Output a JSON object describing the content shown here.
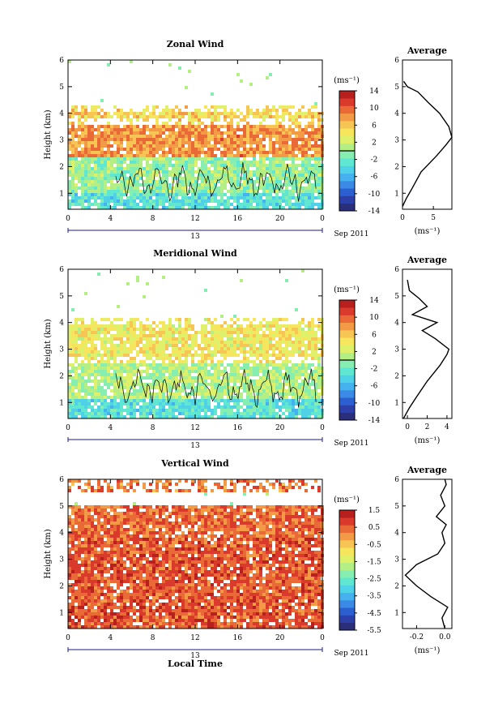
{
  "panels": [
    {
      "title": "Zonal Wind",
      "colorbar_unit": "(ms⁻¹)",
      "colorbar_ticks": [
        "14",
        "10",
        "6",
        "2",
        "-2",
        "-6",
        "-10",
        "-14"
      ],
      "avg_title": "Average",
      "avg_xticks": [
        "0",
        "5"
      ],
      "avg_xlabel": "(ms⁻¹)"
    },
    {
      "title": "Meridional Wind",
      "colorbar_unit": "(ms⁻¹)",
      "colorbar_ticks": [
        "14",
        "10",
        "6",
        "2",
        "-2",
        "-6",
        "-10",
        "-14"
      ],
      "avg_title": "Average",
      "avg_xticks": [
        "0",
        "2",
        "4"
      ],
      "avg_xlabel": "(ms⁻¹)"
    },
    {
      "title": "Vertical Wind",
      "colorbar_unit": "(ms⁻¹)",
      "colorbar_ticks": [
        "1.5",
        "0.5",
        "-0.5",
        "-1.5",
        "-2.5",
        "-3.5",
        "-4.5",
        "-5.5"
      ],
      "avg_title": "Average",
      "avg_xticks": [
        "-0.2",
        "0.0"
      ],
      "avg_xlabel": "(ms⁻¹)"
    }
  ],
  "axes": {
    "ylabel": "Height (km)",
    "yticks": [
      "1",
      "2",
      "3",
      "4",
      "5",
      "6"
    ],
    "xticks": [
      "0",
      "4",
      "8",
      "12",
      "16",
      "20",
      "0"
    ],
    "date_day": "13",
    "date_month": "Sep 2011",
    "xlabel_bottom": "Local Time"
  },
  "colors": {
    "colormap": [
      "#2b2f7a",
      "#2d3fa8",
      "#2c5fd0",
      "#3a8ae6",
      "#45b1ee",
      "#4fd2e8",
      "#5fe7d2",
      "#86eeb0",
      "#b4ef86",
      "#dff06b",
      "#f6e65e",
      "#f7c553",
      "#f29a45",
      "#ea6a37",
      "#d93a2c",
      "#b8201e"
    ]
  },
  "chart_data": [
    {
      "type": "heatmap",
      "title": "Zonal Wind",
      "ylabel": "Height (km)",
      "ylim": [
        0.4,
        6
      ],
      "xlim": [
        0,
        24
      ],
      "xticks": [
        0,
        4,
        8,
        12,
        16,
        20,
        24
      ],
      "colorbar_range": [
        -14,
        14
      ],
      "colorbar_ticks": [
        14,
        10,
        6,
        2,
        -2,
        -6,
        -10,
        -14
      ],
      "zero_contour": true,
      "layers": [
        {
          "from_km": 0.4,
          "to_km": 1.0,
          "value": -3
        },
        {
          "from_km": 1.0,
          "to_km": 2.4,
          "value": 0
        },
        {
          "from_km": 2.4,
          "to_km": 3.6,
          "value": 8
        },
        {
          "from_km": 3.6,
          "to_km": 4.3,
          "value": 5
        }
      ],
      "average_profile": {
        "height_km": [
          0.5,
          0.8,
          1.2,
          1.8,
          2.4,
          2.8,
          3.1,
          3.5,
          4.0,
          4.4,
          4.8,
          5.0,
          5.2
        ],
        "value_ms": [
          0.0,
          0.6,
          1.6,
          3.0,
          5.5,
          7.0,
          8.0,
          7.5,
          6.0,
          4.2,
          2.5,
          0.8,
          0.2
        ],
        "xlim": [
          0,
          8
        ],
        "xticks": [
          0,
          5
        ]
      }
    },
    {
      "type": "heatmap",
      "title": "Meridional Wind",
      "ylabel": "Height (km)",
      "ylim": [
        0.4,
        6
      ],
      "xlim": [
        0,
        24
      ],
      "xticks": [
        0,
        4,
        8,
        12,
        16,
        20,
        24
      ],
      "colorbar_range": [
        -14,
        14
      ],
      "colorbar_ticks": [
        14,
        10,
        6,
        2,
        -2,
        -6,
        -10,
        -14
      ],
      "zero_contour": true,
      "layers": [
        {
          "from_km": 0.4,
          "to_km": 1.1,
          "value": -3
        },
        {
          "from_km": 1.1,
          "to_km": 2.5,
          "value": 1
        },
        {
          "from_km": 2.5,
          "to_km": 4.2,
          "value": 4
        }
      ],
      "average_profile": {
        "height_km": [
          0.4,
          0.8,
          1.2,
          1.8,
          2.4,
          2.8,
          3.0,
          3.4,
          3.7,
          4.0,
          4.3,
          4.6,
          4.9,
          5.2,
          5.6
        ],
        "value_ms": [
          -0.4,
          0.2,
          0.9,
          2.0,
          3.3,
          4.0,
          4.2,
          2.8,
          1.5,
          3.0,
          0.5,
          2.0,
          1.2,
          0.2,
          0.0
        ],
        "xlim": [
          -0.5,
          4.5
        ],
        "xticks": [
          0,
          2,
          4
        ]
      }
    },
    {
      "type": "heatmap",
      "title": "Vertical Wind",
      "ylabel": "Height (km)",
      "xlabel": "Local Time",
      "ylim": [
        0.4,
        6
      ],
      "xlim": [
        0,
        24
      ],
      "xticks": [
        0,
        4,
        8,
        12,
        16,
        20,
        24
      ],
      "colorbar_range": [
        -5.5,
        1.5
      ],
      "colorbar_ticks": [
        1.5,
        0.5,
        -0.5,
        -1.5,
        -2.5,
        -3.5,
        -4.5,
        -5.5
      ],
      "layers": [
        {
          "from_km": 0.4,
          "to_km": 3.8,
          "value": 0.6
        },
        {
          "from_km": 3.8,
          "to_km": 5.0,
          "value": 0.4
        },
        {
          "from_km": 5.5,
          "to_km": 6.0,
          "value": 0.3
        }
      ],
      "average_profile": {
        "height_km": [
          0.4,
          0.8,
          1.2,
          1.6,
          2.0,
          2.4,
          2.8,
          3.2,
          3.6,
          4.0,
          4.3,
          4.6,
          5.0,
          5.4,
          5.8,
          6.0
        ],
        "value_ms": [
          0.0,
          -0.02,
          0.02,
          -0.1,
          -0.2,
          -0.28,
          -0.2,
          -0.05,
          0.0,
          -0.02,
          0.01,
          -0.06,
          0.0,
          -0.03,
          0.01,
          0.0
        ],
        "xlim": [
          -0.3,
          0.05
        ],
        "xticks": [
          -0.2,
          0.0
        ]
      }
    }
  ]
}
